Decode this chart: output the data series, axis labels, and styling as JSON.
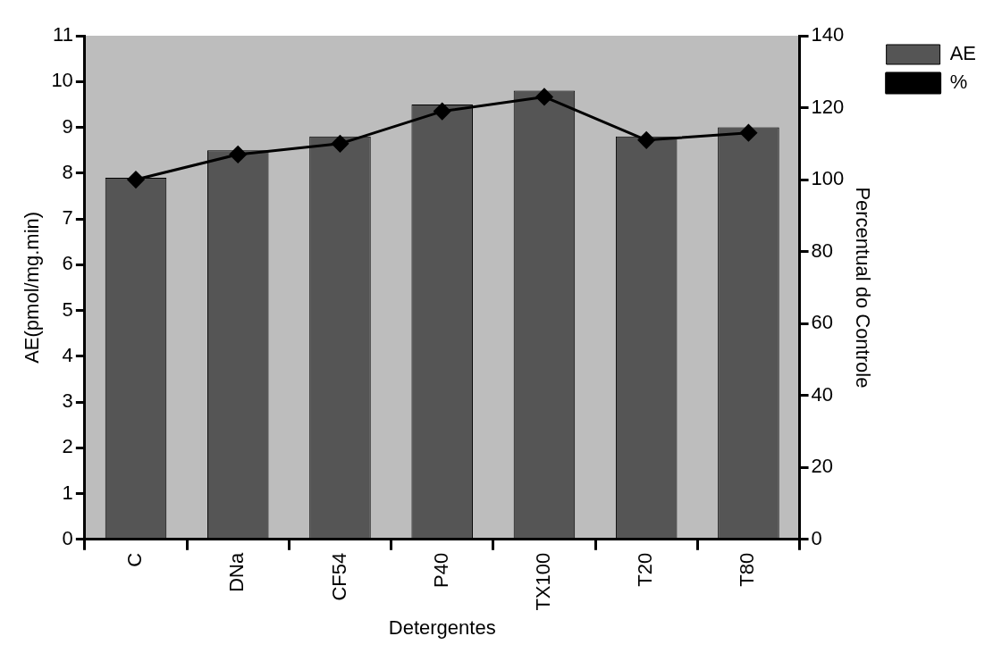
{
  "chart_data": {
    "type": "bar",
    "xlabel": "Detergentes",
    "ylabel": "AE(pmol/mg.min)",
    "y2label": "Percentual do Controle",
    "categories": [
      "C",
      "DNa",
      "CF54",
      "P40",
      "TX100",
      "T20",
      "T80"
    ],
    "series": [
      {
        "name": "AE",
        "color": "#555555",
        "values": [
          7.9,
          8.5,
          8.8,
          9.5,
          9.8,
          8.8,
          9.0
        ]
      },
      {
        "name": "%",
        "type": "line",
        "axis": "y2",
        "color": "#000000",
        "marker": "diamond",
        "values": [
          100,
          107,
          110,
          119,
          123,
          111,
          113
        ]
      }
    ],
    "ylim": [
      0,
      11
    ],
    "yticks": [
      0,
      1,
      2,
      3,
      4,
      5,
      6,
      7,
      8,
      9,
      10,
      11
    ],
    "y2lim": [
      0,
      140
    ],
    "y2ticks": [
      0,
      20,
      40,
      60,
      80,
      100,
      120,
      140
    ],
    "grid": false,
    "legend": "top right"
  }
}
